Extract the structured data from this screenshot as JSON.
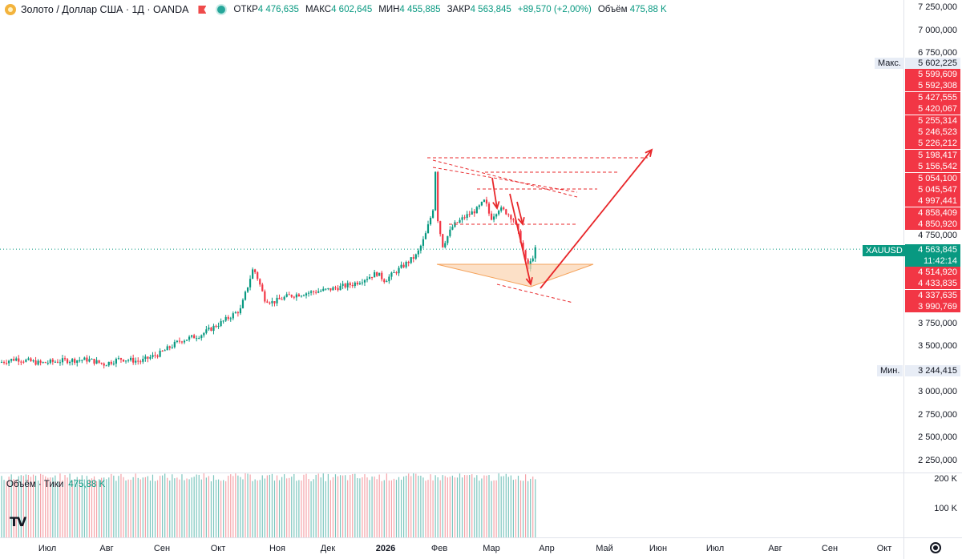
{
  "legend": {
    "symbol_title": "Золото / Доллар США · 1Д · OANDA",
    "open_label": "ОТКР",
    "open": "4 476,635",
    "high_label": "МАКС",
    "high": "4 602,645",
    "low_label": "МИН",
    "low": "4 455,885",
    "close_label": "ЗАКР",
    "close": "4 563,845",
    "change": "+89,570 (+2,00%)",
    "volume_label": "Объём",
    "volume": "475,88 K",
    "coin_icon": "gold-coin-icon",
    "flag_icon": "flag-icon",
    "live_icon": "live-dot-icon"
  },
  "price_scale": {
    "ticks": [
      "7 250,000",
      "7 000,000",
      "6 750,000",
      "4 750,000",
      "3 750,000",
      "3 500,000",
      "3 000,000",
      "2 750,000",
      "2 500,000",
      "2 250,000"
    ],
    "ticks_right": [
      "7 250,000",
      "7 000,000",
      "6 750,000",
      "4 750,000",
      "3 750,000",
      "3 500,000",
      "3 000,000",
      "2 750,000",
      "2 500,000",
      "2 250,000"
    ],
    "max_label": "Макс.",
    "max_value": "5 602,225",
    "min_label": "Мин.",
    "min_value": "3 244,415",
    "symbol_label": "XAUUSD",
    "current_price": "4 563,845",
    "countdown": "11:42:14",
    "red_labels_upper": [
      "5 599,609",
      "5 592,308",
      "5 427,555",
      "5 420,067",
      "5 255,314",
      "5 246,523",
      "5 226,212",
      "5 198,417",
      "5 156,542",
      "5 054,100",
      "5 045,547",
      "4 997,441",
      "4 858,409",
      "4 850,920"
    ],
    "red_labels_lower": [
      "4 514,920",
      "4 433,835",
      "4 337,635",
      "3 990,769"
    ]
  },
  "volume": {
    "title": "Объём · Тики",
    "value": "475,88 K",
    "ticks": [
      "200 K",
      "100 K"
    ]
  },
  "time_axis": {
    "months": [
      "Июл",
      "Авг",
      "Сен",
      "Окт",
      "Ноя",
      "Дек",
      "2026",
      "Фев",
      "Мар",
      "Апр",
      "Май",
      "Июн",
      "Июл",
      "Авг",
      "Сен",
      "Окт"
    ]
  },
  "colors": {
    "up": "#089981",
    "down": "#f23645",
    "drawing_red": "#e8282b",
    "triangle_fill": "#fbd6b4",
    "triangle_stroke": "#f5a35c"
  },
  "chart_data": {
    "type": "candlestick",
    "title": "Золото / Доллар США · 1Д · OANDA",
    "x_ticks": [
      "Июл",
      "Авг",
      "Сен",
      "Окт",
      "Ноя",
      "Дек",
      "2026",
      "Фев",
      "Мар",
      "Апр",
      "Май",
      "Июн",
      "Июл",
      "Авг",
      "Сен",
      "Окт"
    ],
    "y_ticks": [
      2250,
      2500,
      2750,
      3000,
      3500,
      3750,
      4750,
      6750,
      7000,
      7250
    ],
    "ylim": [
      2150,
      7300
    ],
    "series_close_approx": [
      {
        "x": "Июл",
        "y": 3340
      },
      {
        "x": "Авг",
        "y": 3300
      },
      {
        "x": "Сен",
        "y": 3480
      },
      {
        "x": "Окт",
        "y": 3860
      },
      {
        "x": "Окт-20",
        "y": 4350
      },
      {
        "x": "Ноя",
        "y": 4000
      },
      {
        "x": "Дек",
        "y": 4200
      },
      {
        "x": "2026",
        "y": 4350
      },
      {
        "x": "Фев",
        "y": 4900
      },
      {
        "x": "Фев-01",
        "y": 5600
      },
      {
        "x": "Фев-03",
        "y": 4700
      },
      {
        "x": "Мар",
        "y": 5100
      },
      {
        "x": "Мар-20",
        "y": 4350
      },
      {
        "x": "Мар-24",
        "y": 4563.845
      }
    ],
    "last": {
      "open": 4476.635,
      "high": 4602.645,
      "low": 4455.885,
      "close": 4563.845,
      "change": 89.57,
      "change_pct": 2.0
    },
    "max": 5602.225,
    "min": 3244.415,
    "volume": {
      "title": "Объём · Тики",
      "last": "475,88 K",
      "ticks": [
        "200 K",
        "100 K"
      ]
    }
  }
}
